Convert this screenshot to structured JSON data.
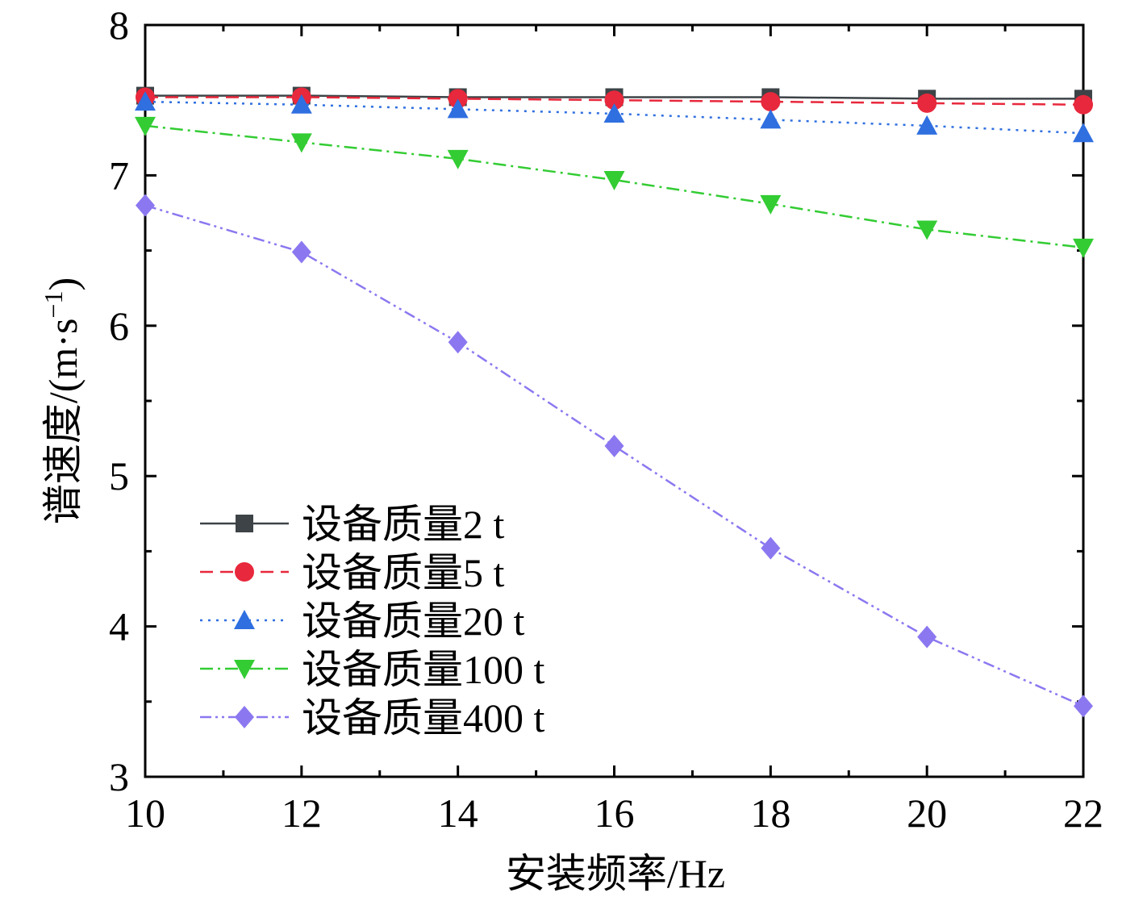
{
  "chart_data": {
    "type": "line",
    "title": "",
    "xlabel": "安装频率/Hz",
    "ylabel_main": "谱速度/(m·s",
    "ylabel_sup": "−1",
    "ylabel_close": ")",
    "xlim": [
      10,
      22
    ],
    "ylim": [
      3,
      8
    ],
    "x_ticks": [
      "10",
      "12",
      "14",
      "16",
      "18",
      "20",
      "22"
    ],
    "y_ticks": [
      "3",
      "4",
      "5",
      "6",
      "7",
      "8"
    ],
    "x": [
      10,
      12,
      14,
      16,
      18,
      20,
      22
    ],
    "legend_position": "lower-left",
    "series": [
      {
        "name": "设备质量2 t",
        "color": "#3d4347",
        "marker": "square",
        "dash": "solid",
        "values": [
          7.53,
          7.53,
          7.52,
          7.52,
          7.52,
          7.51,
          7.51
        ]
      },
      {
        "name": "设备质量5 t",
        "color": "#e8283c",
        "marker": "circle",
        "dash": "dashed",
        "values": [
          7.52,
          7.52,
          7.51,
          7.5,
          7.49,
          7.48,
          7.47
        ]
      },
      {
        "name": "设备质量20 t",
        "color": "#2f6fe0",
        "marker": "triangle-up",
        "dash": "dotted",
        "values": [
          7.49,
          7.47,
          7.44,
          7.41,
          7.37,
          7.33,
          7.28
        ]
      },
      {
        "name": "设备质量100 t",
        "color": "#33cc33",
        "marker": "triangle-down",
        "dash": "dashdot",
        "values": [
          7.33,
          7.22,
          7.11,
          6.97,
          6.81,
          6.64,
          6.52
        ]
      },
      {
        "name": "设备质量400 t",
        "color": "#8b78f0",
        "marker": "diamond",
        "dash": "dashdotdot",
        "values": [
          6.8,
          6.49,
          5.89,
          5.2,
          4.52,
          3.93,
          3.47
        ]
      }
    ]
  }
}
